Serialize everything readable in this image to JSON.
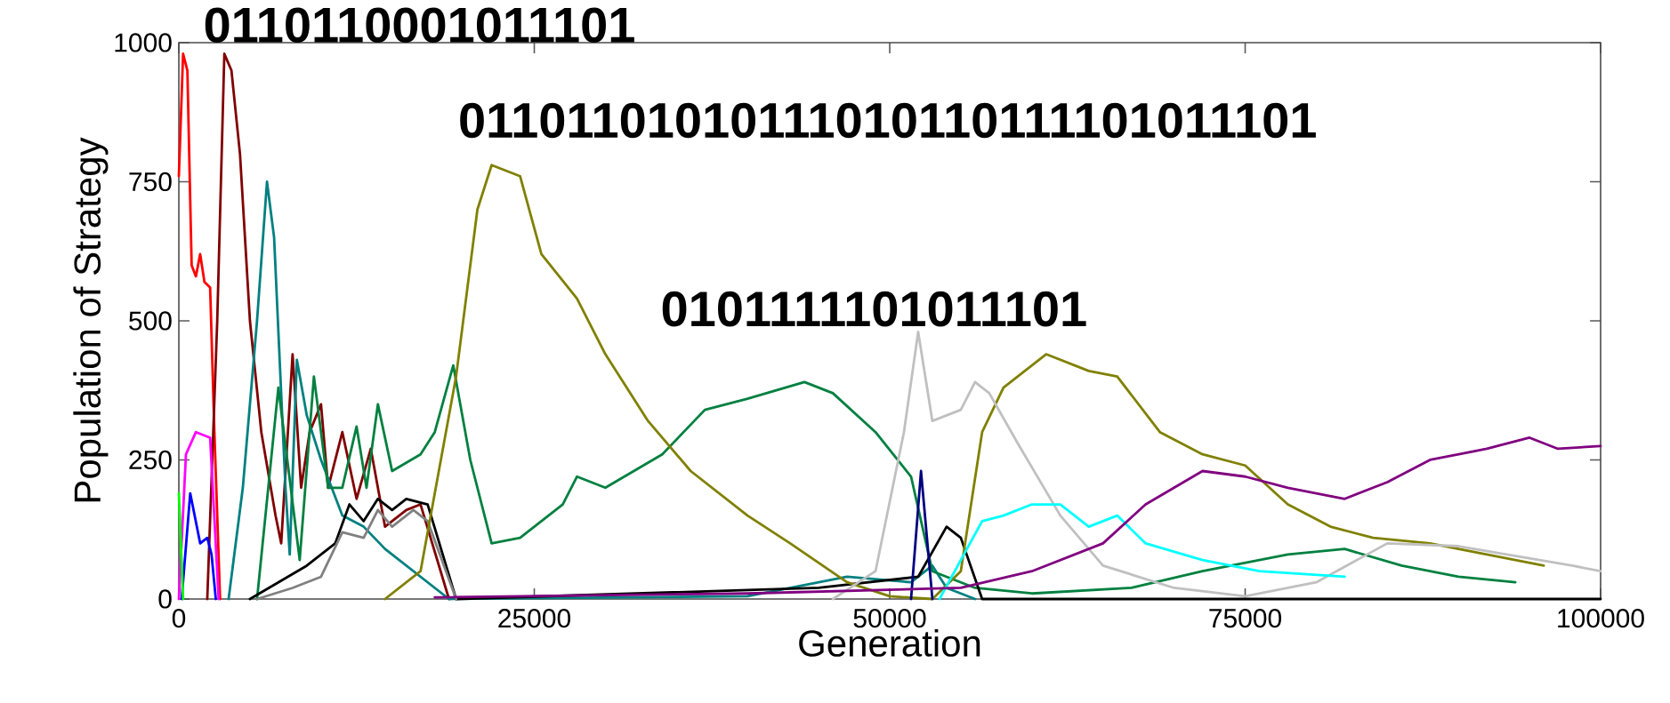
{
  "chart_data": {
    "type": "line",
    "xlabel": "Generation",
    "ylabel": "Population of Strategy",
    "xlim": [
      0,
      100000
    ],
    "ylim": [
      0,
      1000
    ],
    "xticks": [
      0,
      25000,
      50000,
      75000,
      100000
    ],
    "yticks": [
      0,
      250,
      500,
      750,
      1000
    ],
    "annotations": [
      {
        "text": "0110110001011101",
        "x": 3200,
        "y": 980
      },
      {
        "text": "01101101010111010110111101011101",
        "x": 22000,
        "y": 780
      },
      {
        "text": "0101111101011101",
        "x": 44000,
        "y": 390
      }
    ],
    "series": [
      {
        "color": "#ff0000",
        "x": [
          0,
          300,
          600,
          900,
          1200,
          1500,
          1800,
          2200,
          2500,
          2900
        ],
        "values": [
          760,
          980,
          950,
          600,
          580,
          620,
          570,
          560,
          300,
          0
        ]
      },
      {
        "color": "#800000",
        "x": [
          2000,
          2700,
          3200,
          3700,
          4300,
          5000,
          5800,
          6800,
          7200,
          8000,
          8600,
          9200,
          10000,
          10500,
          11500,
          12500,
          13500,
          14500,
          16000,
          17000,
          19000
        ],
        "values": [
          0,
          500,
          980,
          950,
          800,
          500,
          300,
          150,
          100,
          440,
          200,
          300,
          350,
          200,
          300,
          180,
          270,
          130,
          160,
          170,
          0
        ]
      },
      {
        "color": "#ff00ff",
        "x": [
          0,
          500,
          1200,
          2200,
          2800
        ],
        "values": [
          0,
          260,
          300,
          290,
          0
        ]
      },
      {
        "color": "#0000ff",
        "x": [
          200,
          800,
          1500,
          2000,
          2300,
          2600
        ],
        "values": [
          0,
          190,
          100,
          110,
          80,
          0
        ]
      },
      {
        "color": "#00ff00",
        "x": [
          0,
          300
        ],
        "values": [
          190,
          0
        ]
      },
      {
        "color": "#008080",
        "x": [
          3500,
          4500,
          5500,
          6200,
          6700,
          7500,
          7800,
          8300,
          9000,
          10000,
          11500,
          13000,
          14500,
          16000,
          19000,
          40000,
          47000,
          51500,
          53000,
          54000,
          56000
        ],
        "values": [
          0,
          200,
          500,
          750,
          650,
          200,
          80,
          430,
          330,
          250,
          150,
          130,
          90,
          60,
          0,
          5,
          40,
          30,
          60,
          20,
          0
        ]
      },
      {
        "color": "#008040",
        "x": [
          5500,
          7000,
          8500,
          9500,
          10500,
          11500,
          12500,
          13200,
          14000,
          15000,
          17000,
          18000,
          19300,
          20500,
          22000,
          24000,
          27000,
          28000,
          30000,
          34000,
          37000,
          40000,
          44000,
          46000,
          49000,
          51500,
          53000,
          56000,
          60000,
          67000,
          72000,
          78000,
          82000,
          86000,
          90000,
          94000
        ],
        "values": [
          0,
          380,
          70,
          400,
          200,
          200,
          310,
          200,
          350,
          230,
          260,
          300,
          420,
          250,
          100,
          110,
          170,
          220,
          200,
          260,
          340,
          360,
          390,
          370,
          300,
          220,
          50,
          20,
          10,
          20,
          50,
          80,
          90,
          60,
          40,
          30
        ]
      },
      {
        "color": "#000000",
        "x": [
          5000,
          7000,
          9000,
          11000,
          12000,
          13000,
          14000,
          15000,
          16000,
          17500,
          19500,
          45000,
          52000,
          54000,
          55000,
          56500,
          100000
        ],
        "values": [
          0,
          30,
          60,
          100,
          170,
          140,
          180,
          160,
          180,
          170,
          0,
          20,
          40,
          130,
          110,
          0,
          0
        ]
      },
      {
        "color": "#808080",
        "x": [
          5500,
          8000,
          10000,
          11500,
          13000,
          14000,
          15000,
          16500,
          17500,
          19500
        ],
        "values": [
          0,
          20,
          40,
          120,
          110,
          160,
          130,
          160,
          140,
          0
        ]
      },
      {
        "color": "#808000",
        "x": [
          14500,
          17000,
          19500,
          21000,
          22000,
          24000,
          25500,
          28000,
          30000,
          33000,
          36000,
          40000,
          43000,
          47000,
          50000,
          53000,
          55000,
          56500,
          58000,
          61000,
          64000,
          66000,
          69000,
          72000,
          75000,
          78000,
          81000,
          84000,
          88000,
          92000,
          96000
        ],
        "values": [
          0,
          50,
          400,
          700,
          780,
          760,
          620,
          540,
          440,
          320,
          230,
          150,
          100,
          30,
          5,
          0,
          50,
          300,
          380,
          440,
          410,
          400,
          300,
          260,
          240,
          170,
          130,
          110,
          100,
          80,
          60
        ]
      },
      {
        "color": "#c0c0c0",
        "x": [
          46000,
          49000,
          51000,
          52000,
          53000,
          55000,
          56000,
          57000,
          59000,
          62000,
          65000,
          70000,
          75000,
          80000,
          85000,
          90000,
          98000,
          100000
        ],
        "values": [
          0,
          50,
          300,
          480,
          320,
          340,
          390,
          370,
          280,
          150,
          60,
          20,
          5,
          30,
          100,
          95,
          60,
          50
        ]
      },
      {
        "color": "#000080",
        "x": [
          51500,
          52200,
          53000
        ],
        "values": [
          0,
          230,
          0
        ]
      },
      {
        "color": "#00ffff",
        "x": [
          53500,
          56500,
          58000,
          60000,
          62000,
          64000,
          66000,
          68000,
          72000,
          76000,
          82000
        ],
        "values": [
          0,
          140,
          150,
          170,
          170,
          130,
          150,
          100,
          70,
          50,
          40
        ]
      },
      {
        "color": "#800080",
        "x": [
          18000,
          40000,
          55000,
          60000,
          65000,
          68000,
          72000,
          75000,
          78000,
          82000,
          85000,
          88000,
          92000,
          95000,
          97000,
          100000
        ],
        "values": [
          3,
          10,
          20,
          50,
          100,
          170,
          230,
          220,
          200,
          180,
          210,
          250,
          270,
          290,
          270,
          275
        ]
      }
    ]
  }
}
